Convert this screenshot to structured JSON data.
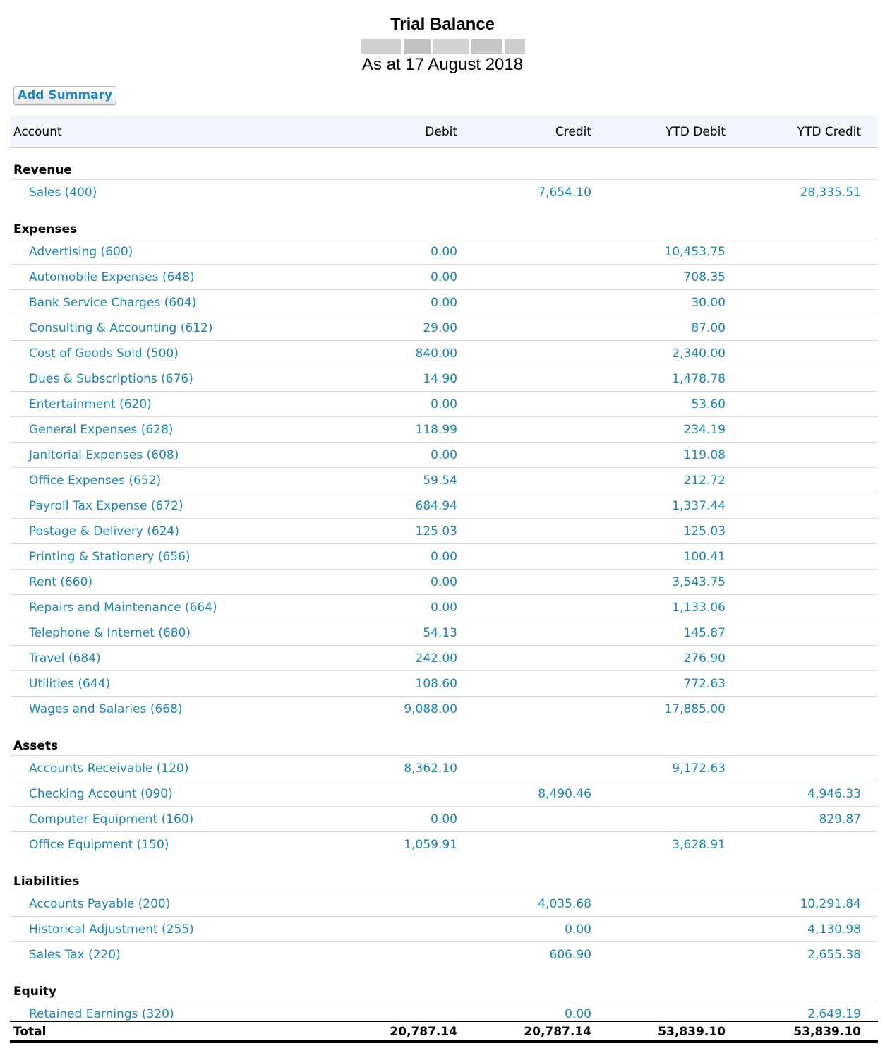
{
  "report": {
    "title": "Trial Balance",
    "date_line": "As at 17 August 2018"
  },
  "toolbar": {
    "add_summary_label": "Add Summary"
  },
  "table": {
    "columns": {
      "account": "Account",
      "debit": "Debit",
      "credit": "Credit",
      "ytd_debit": "YTD Debit",
      "ytd_credit": "YTD Credit"
    },
    "sections": [
      {
        "name": "Revenue",
        "rows": [
          {
            "account": "Sales (400)",
            "debit": "",
            "credit": "7,654.10",
            "ytd_debit": "",
            "ytd_credit": "28,335.51"
          }
        ]
      },
      {
        "name": "Expenses",
        "rows": [
          {
            "account": "Advertising (600)",
            "debit": "0.00",
            "credit": "",
            "ytd_debit": "10,453.75",
            "ytd_credit": ""
          },
          {
            "account": "Automobile Expenses (648)",
            "debit": "0.00",
            "credit": "",
            "ytd_debit": "708.35",
            "ytd_credit": ""
          },
          {
            "account": "Bank Service Charges (604)",
            "debit": "0.00",
            "credit": "",
            "ytd_debit": "30.00",
            "ytd_credit": ""
          },
          {
            "account": "Consulting & Accounting (612)",
            "debit": "29.00",
            "credit": "",
            "ytd_debit": "87.00",
            "ytd_credit": ""
          },
          {
            "account": "Cost of Goods Sold (500)",
            "debit": "840.00",
            "credit": "",
            "ytd_debit": "2,340.00",
            "ytd_credit": ""
          },
          {
            "account": "Dues & Subscriptions (676)",
            "debit": "14.90",
            "credit": "",
            "ytd_debit": "1,478.78",
            "ytd_credit": ""
          },
          {
            "account": "Entertainment (620)",
            "debit": "0.00",
            "credit": "",
            "ytd_debit": "53.60",
            "ytd_credit": ""
          },
          {
            "account": "General Expenses (628)",
            "debit": "118.99",
            "credit": "",
            "ytd_debit": "234.19",
            "ytd_credit": ""
          },
          {
            "account": "Janitorial Expenses (608)",
            "debit": "0.00",
            "credit": "",
            "ytd_debit": "119.08",
            "ytd_credit": ""
          },
          {
            "account": "Office Expenses (652)",
            "debit": "59.54",
            "credit": "",
            "ytd_debit": "212.72",
            "ytd_credit": ""
          },
          {
            "account": "Payroll Tax Expense (672)",
            "debit": "684.94",
            "credit": "",
            "ytd_debit": "1,337.44",
            "ytd_credit": ""
          },
          {
            "account": "Postage & Delivery (624)",
            "debit": "125.03",
            "credit": "",
            "ytd_debit": "125.03",
            "ytd_credit": ""
          },
          {
            "account": "Printing & Stationery (656)",
            "debit": "0.00",
            "credit": "",
            "ytd_debit": "100.41",
            "ytd_credit": ""
          },
          {
            "account": "Rent (660)",
            "debit": "0.00",
            "credit": "",
            "ytd_debit": "3,543.75",
            "ytd_credit": ""
          },
          {
            "account": "Repairs and Maintenance (664)",
            "debit": "0.00",
            "credit": "",
            "ytd_debit": "1,133.06",
            "ytd_credit": ""
          },
          {
            "account": "Telephone & Internet (680)",
            "debit": "54.13",
            "credit": "",
            "ytd_debit": "145.87",
            "ytd_credit": ""
          },
          {
            "account": "Travel (684)",
            "debit": "242.00",
            "credit": "",
            "ytd_debit": "276.90",
            "ytd_credit": ""
          },
          {
            "account": "Utilities (644)",
            "debit": "108.60",
            "credit": "",
            "ytd_debit": "772.63",
            "ytd_credit": ""
          },
          {
            "account": "Wages and Salaries (668)",
            "debit": "9,088.00",
            "credit": "",
            "ytd_debit": "17,885.00",
            "ytd_credit": ""
          }
        ]
      },
      {
        "name": "Assets",
        "rows": [
          {
            "account": "Accounts Receivable (120)",
            "debit": "8,362.10",
            "credit": "",
            "ytd_debit": "9,172.63",
            "ytd_credit": ""
          },
          {
            "account": "Checking Account (090)",
            "debit": "",
            "credit": "8,490.46",
            "ytd_debit": "",
            "ytd_credit": "4,946.33"
          },
          {
            "account": "Computer Equipment (160)",
            "debit": "0.00",
            "credit": "",
            "ytd_debit": "",
            "ytd_credit": "829.87"
          },
          {
            "account": "Office Equipment (150)",
            "debit": "1,059.91",
            "credit": "",
            "ytd_debit": "3,628.91",
            "ytd_credit": ""
          }
        ]
      },
      {
        "name": "Liabilities",
        "rows": [
          {
            "account": "Accounts Payable (200)",
            "debit": "",
            "credit": "4,035.68",
            "ytd_debit": "",
            "ytd_credit": "10,291.84"
          },
          {
            "account": "Historical Adjustment (255)",
            "debit": "",
            "credit": "0.00",
            "ytd_debit": "",
            "ytd_credit": "4,130.98"
          },
          {
            "account": "Sales Tax (220)",
            "debit": "",
            "credit": "606.90",
            "ytd_debit": "",
            "ytd_credit": "2,655.38"
          }
        ]
      },
      {
        "name": "Equity",
        "rows": [
          {
            "account": "Retained Earnings (320)",
            "debit": "",
            "credit": "0.00",
            "ytd_debit": "",
            "ytd_credit": "2,649.19"
          }
        ]
      }
    ],
    "total": {
      "label": "Total",
      "debit": "20,787.14",
      "credit": "20,787.14",
      "ytd_debit": "53,839.10",
      "ytd_credit": "53,839.10"
    }
  },
  "colors": {
    "link": "#1a86b8",
    "header_bg": "#f1f6fc",
    "button_text": "#1f87c5"
  }
}
